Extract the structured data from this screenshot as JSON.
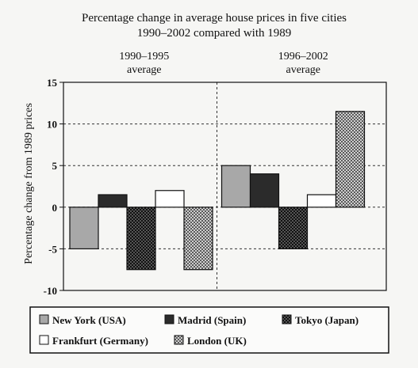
{
  "chart_data": {
    "type": "bar",
    "title": "Percentage change in average house prices in five cities",
    "subtitle": "1990–2002 compared with 1989",
    "ylabel": "Percentage change from 1989 prices",
    "xlabel": "",
    "ylim": [
      -10,
      15
    ],
    "yticks": [
      -10,
      -5,
      0,
      5,
      10,
      15
    ],
    "grid": true,
    "legend_position": "bottom",
    "categories": [
      "1990–1995\naverage",
      "1996–2002\naverage"
    ],
    "category_lines": [
      [
        "1990–1995",
        "average"
      ],
      [
        "1996–2002",
        "average"
      ]
    ],
    "series": [
      {
        "name": "New York (USA)",
        "values": [
          -5,
          5
        ],
        "fill": "#a8a8a8",
        "pattern": "solid"
      },
      {
        "name": "Madrid (Spain)",
        "values": [
          1.5,
          4
        ],
        "fill": "#2b2b2b",
        "pattern": "solid"
      },
      {
        "name": "Tokyo (Japan)",
        "values": [
          -7.5,
          -5
        ],
        "fill": "#3a3a3a",
        "pattern": "grid"
      },
      {
        "name": "Frankfurt (Germany)",
        "values": [
          2,
          1.5
        ],
        "fill": "#ffffff",
        "pattern": "solid"
      },
      {
        "name": "London (UK)",
        "values": [
          -7.5,
          11.5
        ],
        "fill": "#9a9a9a",
        "pattern": "check"
      }
    ]
  }
}
